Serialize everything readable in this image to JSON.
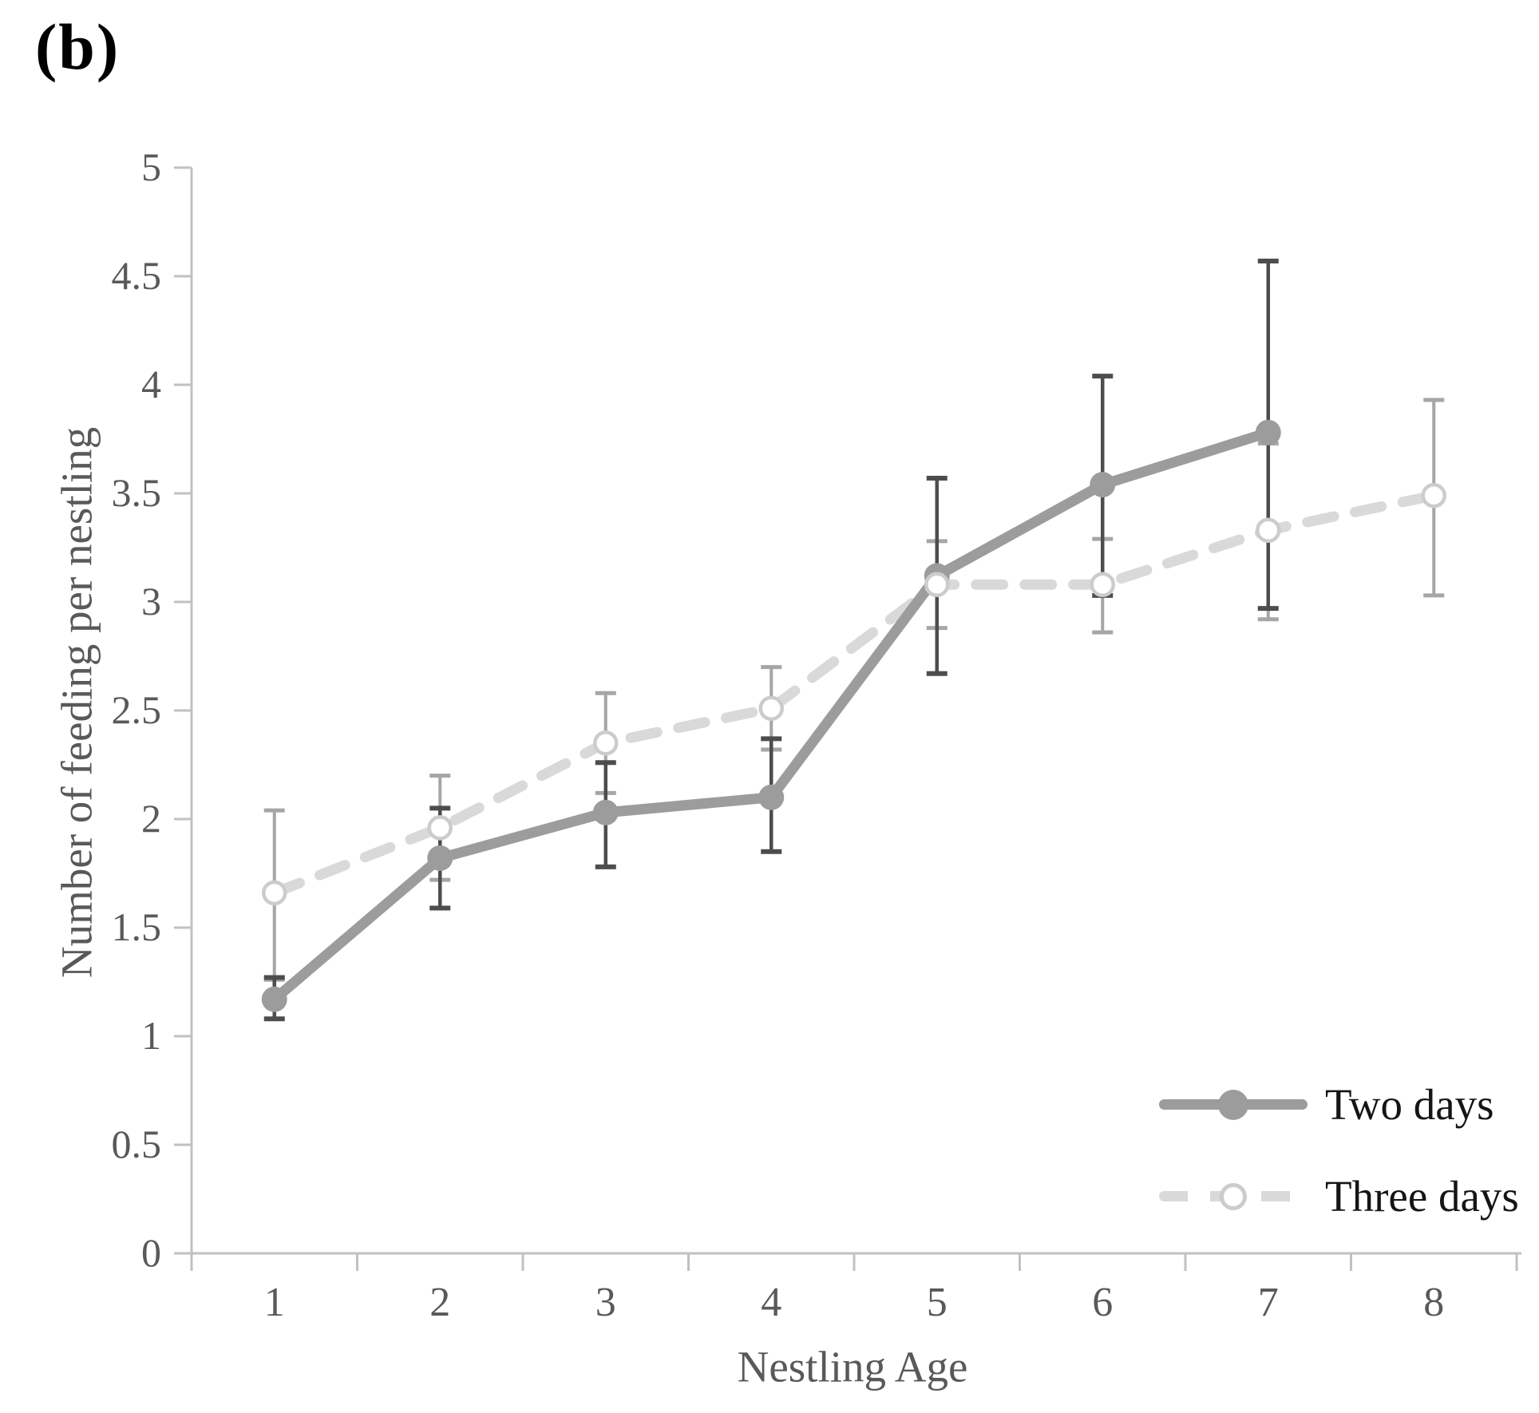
{
  "panel_label": "(b)",
  "colors": {
    "two_days_line": "#9c9c9c",
    "two_days_marker": "#9c9c9c",
    "two_days_error": "#4d4d4d",
    "three_days_line": "#d9d9d9",
    "three_days_marker_stroke": "#cccccc",
    "three_days_error": "#a6a6a6",
    "axis": "#c1c1c1",
    "tick_label_text": "#595959",
    "axis_title_text": "#595959",
    "legend_text": "#151515",
    "panel_label_text": "#000000"
  },
  "chart_data": {
    "type": "line",
    "title": "(b)",
    "xlabel": "Nestling Age",
    "ylabel": "Number of feeding per nestling",
    "x": [
      1,
      2,
      3,
      4,
      5,
      6,
      7,
      8
    ],
    "xtick_labels": [
      "1",
      "2",
      "3",
      "4",
      "5",
      "6",
      "7",
      "8"
    ],
    "ylim": [
      0,
      5
    ],
    "ytick_step": 0.5,
    "ytick_labels": [
      "0",
      "0.5",
      "1",
      "1.5",
      "2",
      "2.5",
      "3",
      "3.5",
      "4",
      "4.5",
      "5"
    ],
    "grid": false,
    "legend_position": "lower right",
    "error_bars": true,
    "series": [
      {
        "name": "Two days",
        "line_style": "solid",
        "marker": "filled-circle",
        "x": [
          1,
          2,
          3,
          4,
          5,
          6,
          7
        ],
        "values": [
          1.17,
          1.82,
          2.03,
          2.1,
          3.12,
          3.54,
          3.78
        ],
        "err_low": [
          1.08,
          1.59,
          1.78,
          1.85,
          2.67,
          3.03,
          2.97
        ],
        "err_high": [
          1.27,
          2.05,
          2.26,
          2.37,
          3.57,
          4.04,
          4.57
        ]
      },
      {
        "name": "Three days",
        "line_style": "dashed",
        "marker": "open-circle",
        "x": [
          1,
          2,
          3,
          4,
          5,
          6,
          7,
          8
        ],
        "values": [
          1.66,
          1.96,
          2.35,
          2.51,
          3.08,
          3.08,
          3.33,
          3.49
        ],
        "err_low": [
          1.26,
          1.72,
          2.12,
          2.32,
          2.88,
          2.86,
          2.92,
          3.03
        ],
        "err_high": [
          2.04,
          2.2,
          2.58,
          2.7,
          3.28,
          3.29,
          3.73,
          3.93
        ]
      }
    ]
  }
}
